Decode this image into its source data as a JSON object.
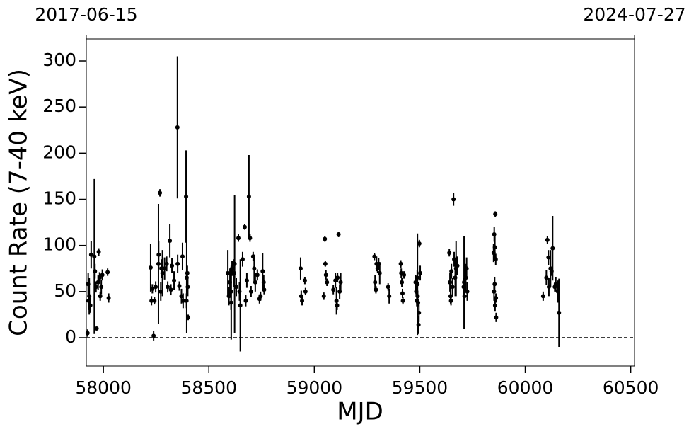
{
  "chart_data": {
    "type": "errorbar",
    "xlabel": "MJD",
    "ylabel": "Count Rate (7-40 keV)",
    "xlim": [
      57919,
      60518
    ],
    "ylim": [
      -30.7,
      323.8
    ],
    "xticks": [
      58000,
      58500,
      59000,
      59500,
      60000,
      60500
    ],
    "yticks": [
      0,
      50,
      100,
      150,
      200,
      250,
      300
    ],
    "top_xticks": [
      {
        "value": 57919,
        "label": "2017-06-15"
      },
      {
        "value": 60518,
        "label": "2024-07-27"
      }
    ],
    "hline": 0,
    "color": "#000000",
    "x": [
      57925,
      57928,
      57930,
      57933,
      57938,
      57942,
      57957,
      57960,
      57965,
      57968,
      57975,
      57978,
      57982,
      57985,
      57990,
      57995,
      58020,
      58025,
      58224,
      58228,
      58232,
      58238,
      58242,
      58248,
      58261,
      58262,
      58268,
      58272,
      58275,
      58280,
      58290,
      58300,
      58305,
      58315,
      58320,
      58325,
      58335,
      58351,
      58352,
      58360,
      58370,
      58375,
      58378,
      58392,
      58395,
      58400,
      58402,
      58398,
      58394,
      58590,
      58595,
      58600,
      58605,
      58610,
      58606,
      58620,
      58622,
      58630,
      58640,
      58645,
      58649,
      58660,
      58670,
      58675,
      58680,
      58690,
      58695,
      58700,
      58710,
      58715,
      58720,
      58730,
      58740,
      58745,
      58755,
      58760,
      58762,
      58935,
      58938,
      58942,
      58955,
      58958,
      59045,
      59050,
      59052,
      59055,
      59060,
      59090,
      59100,
      59105,
      59108,
      59110,
      59115,
      59120,
      59125,
      59285,
      59288,
      59292,
      59295,
      59300,
      59305,
      59310,
      59350,
      59355,
      59410,
      59412,
      59415,
      59418,
      59420,
      59425,
      59480,
      59483,
      59486,
      59488,
      59490,
      59492,
      59494,
      59496,
      59498,
      59489,
      59502,
      59640,
      59643,
      59646,
      59648,
      59650,
      59655,
      59660,
      59663,
      59668,
      59672,
      59678,
      59710,
      59708,
      59712,
      59718,
      59722,
      59725,
      59850,
      59853,
      59856,
      59858,
      59860,
      59855,
      59852,
      59861,
      59862,
      59857,
      60085,
      60100,
      60105,
      60110,
      60112,
      60120,
      60125,
      60130,
      60140,
      60145,
      60155,
      60160
    ],
    "values": [
      5,
      58,
      40,
      45,
      35,
      90,
      88,
      72,
      55,
      10,
      60,
      93,
      65,
      45,
      55,
      68,
      71,
      43,
      76,
      40,
      53,
      2,
      40,
      55,
      80,
      90,
      157,
      50,
      75,
      70,
      75,
      80,
      55,
      105,
      52,
      78,
      62,
      228,
      80,
      56,
      45,
      88,
      40,
      153,
      65,
      55,
      22,
      70,
      40,
      70,
      45,
      60,
      50,
      75,
      38,
      70,
      80,
      55,
      108,
      50,
      35,
      85,
      120,
      40,
      62,
      153,
      108,
      50,
      88,
      75,
      60,
      68,
      42,
      45,
      72,
      60,
      52,
      75,
      45,
      40,
      62,
      50,
      45,
      107,
      80,
      68,
      60,
      52,
      62,
      40,
      35,
      65,
      112,
      50,
      60,
      88,
      60,
      52,
      80,
      75,
      80,
      70,
      55,
      45,
      80,
      70,
      60,
      48,
      40,
      68,
      60,
      50,
      40,
      65,
      45,
      38,
      14,
      27,
      102,
      58,
      70,
      92,
      60,
      45,
      40,
      72,
      55,
      150,
      85,
      65,
      75,
      78,
      60,
      55,
      45,
      65,
      75,
      50,
      92,
      112,
      98,
      134,
      85,
      58,
      50,
      43,
      22,
      35,
      45,
      65,
      106,
      87,
      55,
      75,
      72,
      97,
      55,
      58,
      50,
      27
    ],
    "errors": [
      4,
      12,
      10,
      20,
      8,
      15,
      84,
      8,
      6,
      2,
      8,
      4,
      6,
      5,
      8,
      6,
      4,
      5,
      26,
      5,
      5,
      5,
      4,
      6,
      65,
      15,
      4,
      10,
      10,
      25,
      12,
      8,
      6,
      18,
      6,
      8,
      10,
      77,
      10,
      5,
      8,
      15,
      8,
      50,
      60,
      10,
      3,
      8,
      8,
      25,
      10,
      15,
      20,
      8,
      40,
      15,
      75,
      10,
      4,
      10,
      50,
      8,
      3,
      6,
      8,
      45,
      4,
      6,
      5,
      15,
      10,
      6,
      5,
      5,
      20,
      8,
      5,
      12,
      6,
      5,
      4,
      4,
      4,
      3,
      3,
      5,
      4,
      5,
      8,
      15,
      5,
      5,
      3,
      8,
      10,
      4,
      8,
      4,
      8,
      5,
      6,
      12,
      4,
      8,
      4,
      5,
      5,
      5,
      4,
      4,
      8,
      6,
      6,
      8,
      6,
      4,
      10,
      10,
      4,
      55,
      8,
      4,
      10,
      8,
      5,
      8,
      10,
      7,
      8,
      20,
      30,
      10,
      50,
      10,
      8,
      15,
      12,
      10,
      10,
      8,
      12,
      3,
      6,
      8,
      10,
      5,
      5,
      6,
      5,
      8,
      4,
      8,
      10,
      20,
      5,
      35,
      5,
      8,
      12,
      37
    ]
  }
}
